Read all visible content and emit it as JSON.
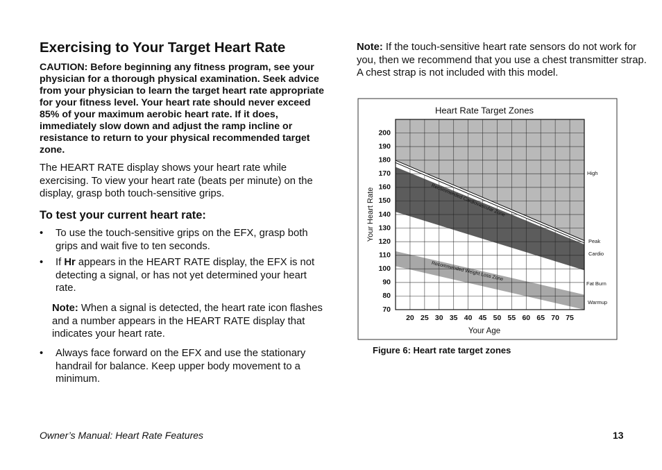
{
  "title": "Exercising to Your Target Heart Rate",
  "caution": "CAUTION: Before beginning any fitness program, see your physician for a thorough physical examination. Seek advice from your physician to learn the target heart rate appropriate for your fitness level. Your heart rate should never exceed 85% of your maximum aerobic heart rate. If it does, immediately slow down and adjust the ramp incline or resistance to return to your physical recommended target zone.",
  "paragraph": "The HEART RATE display shows your heart rate while exercising. To view your heart rate (beats per minute) on the display, grasp both touch-sensitive grips.",
  "heading": "To test your current heart rate:",
  "bullets": [
    [
      "To use the touch-sensitive grips on the EFX, grasp both grips and wait five to ten seconds."
    ],
    [
      "If ",
      "Hr",
      " appears in the HEART RATE display, the EFX is not detecting a signal, or has not yet determined your heart rate."
    ],
    [
      "Always face forward on the EFX and use the stationary handrail for balance. Keep upper body movement to a minimum."
    ]
  ],
  "bullet_symbol": "•",
  "note_1": {
    "label": "Note:",
    "text": " When a signal is detected, the heart rate icon flashes and a number appears in the HEART RATE display that indicates your heart rate."
  },
  "note_2": {
    "label": "Note:",
    "text": " If the touch-sensitive heart rate sensors do not work for you, then we recommend that you use a chest transmitter strap. A chest strap is not included with this model."
  },
  "chart_data": {
    "type": "area",
    "title": "Heart Rate Target Zones",
    "x_label": "Your Age",
    "y_label": "Your Heart Rate",
    "x": [
      15,
      80
    ],
    "xlim": [
      15,
      80
    ],
    "ylim": [
      70,
      210
    ],
    "xticks": [
      20,
      25,
      30,
      35,
      40,
      45,
      50,
      55,
      60,
      65,
      70,
      75
    ],
    "yticks": [
      70,
      80,
      90,
      100,
      110,
      120,
      130,
      140,
      150,
      160,
      170,
      180,
      190,
      200
    ],
    "grid": true,
    "background": "#b9b9b9",
    "series": [
      {
        "type": "line",
        "color": "#ffffff",
        "values": [
          179,
          120
        ]
      },
      {
        "name": "Recommended Cardiovascular Zone",
        "color": "#5c5c5c",
        "upper": [
          175,
          118
        ],
        "lower": [
          142,
          99
        ]
      },
      {
        "name": "Recommended Weight Loss Zone",
        "color": "#a8a8a8",
        "upper": [
          113,
          81
        ],
        "lower": [
          102,
          70
        ]
      }
    ],
    "zone_labels": [
      "High",
      "Peak",
      "Cardio",
      "Fat Burn",
      "Warmup"
    ]
  },
  "caption": "Figure 6: Heart rate target zones",
  "footer": "Owner’s Manual: Heart Rate Features",
  "page_number": "13"
}
